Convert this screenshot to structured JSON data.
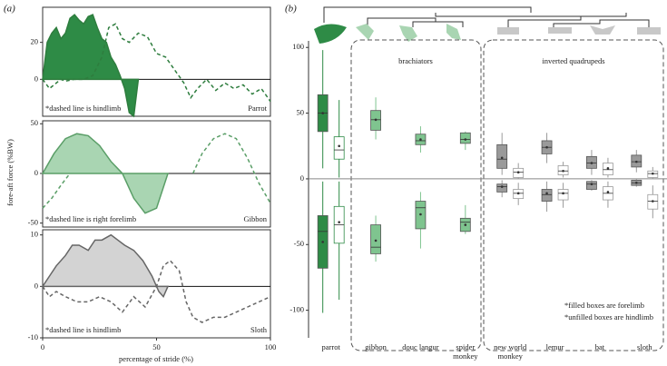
{
  "panel_labels": [
    "(a)",
    "(b)"
  ],
  "chart_data": [
    {
      "type": "line",
      "ylabel": "fore-aft force (%BW)",
      "xlabel": "percentage of stride (%)",
      "xlim": [
        0,
        100
      ],
      "xticks": [
        0,
        50,
        100
      ],
      "subplots": [
        {
          "label": "Parrot",
          "note": "*dashed line is hindlimb",
          "ylim": [
            -20,
            39
          ],
          "yticks": [
            0,
            20
          ],
          "series": [
            {
              "style": "solid",
              "color": "#2e7d3e",
              "fill": "#2e8b46",
              "x": [
                0,
                2,
                4,
                6,
                8,
                10,
                12,
                14,
                16,
                18,
                20,
                22,
                24,
                26,
                28,
                30,
                32,
                34,
                36,
                38,
                40,
                42
              ],
              "values": [
                0,
                20,
                25,
                28,
                22,
                25,
                33,
                35,
                32,
                30,
                34,
                35,
                28,
                22,
                20,
                12,
                8,
                2,
                -5,
                -18,
                -20,
                0
              ]
            },
            {
              "style": "dashed",
              "color": "#2e7d3e",
              "x": [
                0,
                3,
                6,
                8,
                10,
                14,
                18,
                22,
                26,
                29,
                32,
                35,
                38,
                42,
                46,
                50,
                54,
                58,
                62,
                65,
                68,
                72,
                76,
                80,
                84,
                88,
                92,
                96,
                100
              ],
              "values": [
                0,
                -5,
                -2,
                0,
                -1,
                0,
                0,
                2,
                12,
                28,
                30,
                22,
                20,
                25,
                23,
                14,
                12,
                5,
                -2,
                -10,
                -5,
                0,
                -6,
                -2,
                -5,
                -3,
                -8,
                -5,
                -12
              ]
            }
          ]
        },
        {
          "label": "Gibbon",
          "note": "*dashed line is right forelimb",
          "ylim": [
            -54,
            53
          ],
          "yticks": [
            -50,
            0,
            50
          ],
          "series": [
            {
              "style": "solid",
              "color": "#5a9e67",
              "fill": "#a9d5b2",
              "x": [
                0,
                5,
                10,
                15,
                20,
                25,
                30,
                35,
                40,
                45,
                50,
                55
              ],
              "values": [
                0,
                20,
                35,
                40,
                38,
                28,
                12,
                0,
                -25,
                -40,
                -35,
                0
              ]
            },
            {
              "style": "dashed",
              "color": "#5a9e67",
              "x": [
                0,
                4,
                8,
                12,
                null,
                66,
                70,
                75,
                80,
                85,
                90,
                95,
                100
              ],
              "values": [
                -35,
                -25,
                -12,
                0,
                null,
                0,
                20,
                35,
                40,
                35,
                15,
                -10,
                -30
              ]
            }
          ]
        },
        {
          "label": "Sloth",
          "note": "*dashed line is hindlimb",
          "ylim": [
            -10,
            11
          ],
          "yticks": [
            -10,
            0,
            10
          ],
          "series": [
            {
              "style": "solid",
              "color": "#666666",
              "fill": "#d3d3d3",
              "x": [
                0,
                3,
                6,
                10,
                13,
                16,
                20,
                23,
                26,
                30,
                33,
                36,
                40,
                44,
                48,
                51,
                53,
                55
              ],
              "values": [
                0,
                2,
                4,
                6,
                8,
                8,
                7,
                9,
                9,
                10,
                9,
                8,
                7,
                5,
                2,
                -1,
                -2,
                0
              ]
            },
            {
              "style": "dashed",
              "color": "#666666",
              "x": [
                0,
                3,
                6,
                10,
                15,
                20,
                25,
                30,
                35,
                40,
                45,
                50,
                53,
                56,
                60,
                63,
                66,
                70,
                75,
                80,
                85,
                90,
                95,
                100
              ],
              "values": [
                0,
                -2,
                -1,
                -2,
                -3,
                -3,
                -2,
                -3,
                -5,
                -2,
                -4,
                0,
                4,
                5,
                3,
                -3,
                -6,
                -7,
                -6,
                -6,
                -5,
                -4,
                -3,
                -2
              ]
            }
          ]
        }
      ]
    },
    {
      "type": "box",
      "categories": [
        "parrot",
        "gibbon",
        "douc langur",
        "spider monkey",
        "new world monkey",
        "lemur",
        "bat",
        "sloth"
      ],
      "colors": [
        "#2e8b46",
        "#7fc48f",
        "#7fc48f",
        "#7fc48f",
        "#9a9a9a",
        "#9a9a9a",
        "#9a9a9a",
        "#9a9a9a"
      ],
      "ylim": [
        -121,
        105
      ],
      "yticks": [
        -100,
        -50,
        0,
        50,
        100
      ],
      "annotations": [
        "brachiators",
        "inverted quadrupeds",
        "*filled boxes are forelimb",
        "*unfilled boxes are hindlimb"
      ],
      "series": [
        {
          "filled": true,
          "boxes": [
            {
              "low": 8,
              "q1": 36,
              "median": 50,
              "q3": 64,
              "high": 98,
              "mean": 50
            },
            {
              "low": 30,
              "q1": 37,
              "median": 45,
              "q3": 52,
              "high": 62,
              "mean": 45
            },
            {
              "low": 20,
              "q1": 26,
              "median": 29,
              "q3": 34,
              "high": 40,
              "mean": 30
            },
            {
              "low": 22,
              "q1": 27,
              "median": 30,
              "q3": 35,
              "high": 36,
              "mean": 30
            },
            {
              "low": 3,
              "q1": 8,
              "median": 15,
              "q3": 26,
              "high": 35,
              "mean": 16
            },
            {
              "low": 12,
              "q1": 19,
              "median": 24,
              "q3": 29,
              "high": 35,
              "mean": 24
            },
            {
              "low": 3,
              "q1": 8,
              "median": 12,
              "q3": 17,
              "high": 22,
              "mean": 12
            },
            {
              "low": 5,
              "q1": 9,
              "median": 13,
              "q3": 18,
              "high": 22,
              "mean": 13
            }
          ]
        },
        {
          "filled": false,
          "boxes": [
            {
              "low": 1,
              "q1": 15,
              "median": 22,
              "q3": 32,
              "high": 60,
              "mean": 25
            },
            null,
            null,
            null,
            {
              "low": 0,
              "q1": 1,
              "median": 5,
              "q3": 8,
              "high": 12,
              "mean": 5
            },
            {
              "low": 1,
              "q1": 3,
              "median": 6,
              "q3": 10,
              "high": 13,
              "mean": 6
            },
            {
              "low": 1,
              "q1": 3,
              "median": 7,
              "q3": 12,
              "high": 16,
              "mean": 8
            },
            {
              "low": 0,
              "q1": 1,
              "median": 4,
              "q3": 6,
              "high": 9,
              "mean": 4
            }
          ]
        },
        {
          "filled": true,
          "boxes": [
            {
              "low": -102,
              "q1": -68,
              "median": -40,
              "q3": -28,
              "high": -2,
              "mean": -48
            },
            {
              "low": -63,
              "q1": -57,
              "median": -52,
              "q3": -35,
              "high": -28,
              "mean": -47
            },
            {
              "low": -53,
              "q1": -38,
              "median": -22,
              "q3": -17,
              "high": -10,
              "mean": -27
            },
            {
              "low": -42,
              "q1": -40,
              "median": -33,
              "q3": -30,
              "high": -20,
              "mean": -35
            },
            {
              "low": -14,
              "q1": -10,
              "median": -6,
              "q3": -4,
              "high": -1,
              "mean": -6
            },
            {
              "low": -25,
              "q1": -17,
              "median": -12,
              "q3": -8,
              "high": -2,
              "mean": -11
            },
            {
              "low": -9,
              "q1": -8,
              "median": -4,
              "q3": -2,
              "high": -1,
              "mean": -4
            },
            {
              "low": -6,
              "q1": -5,
              "median": -3,
              "q3": -1,
              "high": 0,
              "mean": -3
            }
          ]
        },
        {
          "filled": false,
          "boxes": [
            {
              "low": -92,
              "q1": -49,
              "median": -35,
              "q3": -21,
              "high": -2,
              "mean": -33
            },
            null,
            null,
            null,
            {
              "low": -20,
              "q1": -15,
              "median": -11,
              "q3": -8,
              "high": -3,
              "mean": -11
            },
            {
              "low": -22,
              "q1": -16,
              "median": -11,
              "q3": -8,
              "high": -3,
              "mean": -11
            },
            {
              "low": -22,
              "q1": -16,
              "median": -11,
              "q3": -6,
              "high": -2,
              "mean": -10
            },
            {
              "low": -30,
              "q1": -23,
              "median": -17,
              "q3": -12,
              "high": -5,
              "mean": -17
            }
          ]
        }
      ]
    }
  ]
}
